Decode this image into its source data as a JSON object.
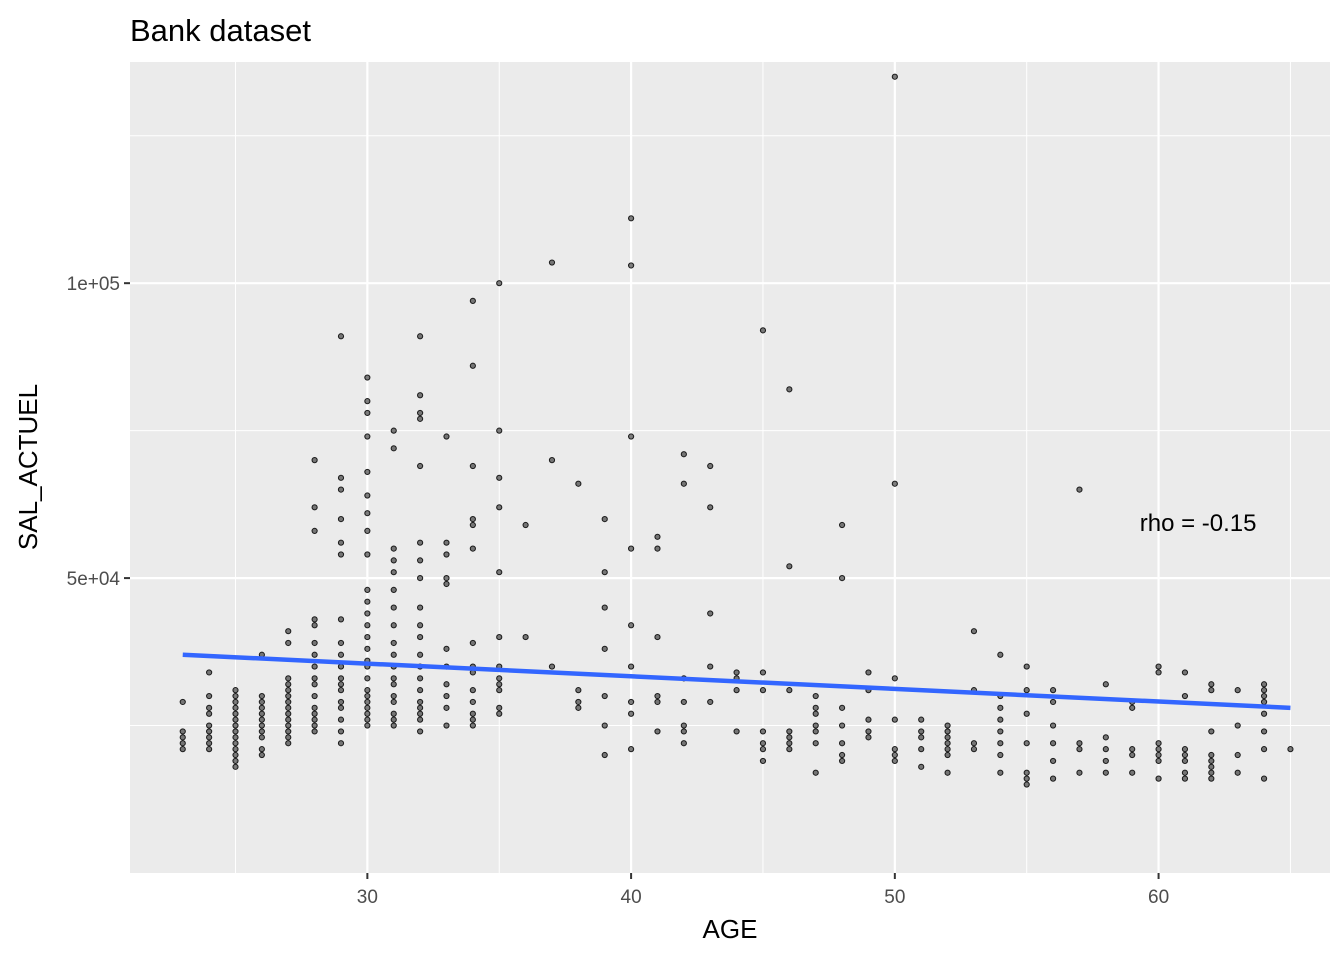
{
  "chart_data": {
    "type": "scatter",
    "title": "Bank dataset",
    "xlabel": "AGE",
    "ylabel": "SAL_ACTUEL",
    "xlim": [
      21,
      66.5
    ],
    "ylim": [
      0,
      137500
    ],
    "x_ticks": [
      30,
      40,
      50,
      60
    ],
    "x_tick_labels": [
      "30",
      "40",
      "50",
      "60"
    ],
    "y_ticks": [
      50000,
      100000
    ],
    "y_tick_labels": [
      "5e+04",
      "1e+05"
    ],
    "grid": true,
    "background_color": "#ebebeb",
    "grid_color": "#ffffff",
    "point_color": "#000000",
    "point_alpha": 0.5,
    "trend_color": "#3366ff",
    "annotation": {
      "text": "rho = -0.15",
      "x": 61.5,
      "y": 58000
    },
    "trend_line": {
      "x": [
        23,
        65
      ],
      "y": [
        37000,
        28000
      ]
    },
    "points": [
      [
        23,
        21000
      ],
      [
        23,
        22000
      ],
      [
        23,
        23000
      ],
      [
        23,
        24000
      ],
      [
        23,
        29000
      ],
      [
        24,
        21000
      ],
      [
        24,
        22000
      ],
      [
        24,
        23000
      ],
      [
        24,
        24000
      ],
      [
        24,
        25000
      ],
      [
        24,
        27000
      ],
      [
        24,
        28000
      ],
      [
        24,
        30000
      ],
      [
        24,
        34000
      ],
      [
        25,
        18000
      ],
      [
        25,
        19000
      ],
      [
        25,
        20000
      ],
      [
        25,
        21000
      ],
      [
        25,
        22000
      ],
      [
        25,
        23000
      ],
      [
        25,
        24000
      ],
      [
        25,
        25000
      ],
      [
        25,
        26000
      ],
      [
        25,
        27000
      ],
      [
        25,
        28000
      ],
      [
        25,
        29000
      ],
      [
        25,
        30000
      ],
      [
        25,
        31000
      ],
      [
        26,
        20000
      ],
      [
        26,
        21000
      ],
      [
        26,
        23000
      ],
      [
        26,
        24000
      ],
      [
        26,
        25000
      ],
      [
        26,
        26000
      ],
      [
        26,
        27000
      ],
      [
        26,
        28000
      ],
      [
        26,
        29000
      ],
      [
        26,
        30000
      ],
      [
        26,
        37000
      ],
      [
        27,
        22000
      ],
      [
        27,
        23000
      ],
      [
        27,
        24000
      ],
      [
        27,
        25000
      ],
      [
        27,
        26000
      ],
      [
        27,
        27000
      ],
      [
        27,
        28000
      ],
      [
        27,
        29000
      ],
      [
        27,
        30000
      ],
      [
        27,
        31000
      ],
      [
        27,
        32000
      ],
      [
        27,
        33000
      ],
      [
        27,
        39000
      ],
      [
        27,
        41000
      ],
      [
        28,
        24000
      ],
      [
        28,
        25000
      ],
      [
        28,
        26000
      ],
      [
        28,
        27000
      ],
      [
        28,
        28000
      ],
      [
        28,
        30000
      ],
      [
        28,
        32000
      ],
      [
        28,
        33000
      ],
      [
        28,
        35000
      ],
      [
        28,
        37000
      ],
      [
        28,
        39000
      ],
      [
        28,
        42000
      ],
      [
        28,
        43000
      ],
      [
        28,
        58000
      ],
      [
        28,
        62000
      ],
      [
        28,
        70000
      ],
      [
        29,
        22000
      ],
      [
        29,
        24000
      ],
      [
        29,
        26000
      ],
      [
        29,
        28000
      ],
      [
        29,
        29000
      ],
      [
        29,
        31000
      ],
      [
        29,
        32000
      ],
      [
        29,
        33000
      ],
      [
        29,
        35000
      ],
      [
        29,
        37000
      ],
      [
        29,
        39000
      ],
      [
        29,
        43000
      ],
      [
        29,
        54000
      ],
      [
        29,
        56000
      ],
      [
        29,
        60000
      ],
      [
        29,
        65000
      ],
      [
        29,
        67000
      ],
      [
        29,
        91000
      ],
      [
        30,
        25000
      ],
      [
        30,
        26000
      ],
      [
        30,
        27000
      ],
      [
        30,
        28000
      ],
      [
        30,
        29000
      ],
      [
        30,
        30000
      ],
      [
        30,
        31000
      ],
      [
        30,
        33000
      ],
      [
        30,
        35000
      ],
      [
        30,
        36000
      ],
      [
        30,
        38000
      ],
      [
        30,
        40000
      ],
      [
        30,
        42000
      ],
      [
        30,
        44000
      ],
      [
        30,
        46000
      ],
      [
        30,
        48000
      ],
      [
        30,
        54000
      ],
      [
        30,
        58000
      ],
      [
        30,
        61000
      ],
      [
        30,
        64000
      ],
      [
        30,
        68000
      ],
      [
        30,
        74000
      ],
      [
        30,
        78000
      ],
      [
        30,
        80000
      ],
      [
        30,
        84000
      ],
      [
        31,
        25000
      ],
      [
        31,
        26000
      ],
      [
        31,
        27000
      ],
      [
        31,
        29000
      ],
      [
        31,
        30000
      ],
      [
        31,
        32000
      ],
      [
        31,
        33000
      ],
      [
        31,
        35000
      ],
      [
        31,
        37000
      ],
      [
        31,
        39000
      ],
      [
        31,
        42000
      ],
      [
        31,
        45000
      ],
      [
        31,
        48000
      ],
      [
        31,
        51000
      ],
      [
        31,
        53000
      ],
      [
        31,
        55000
      ],
      [
        31,
        72000
      ],
      [
        31,
        75000
      ],
      [
        32,
        24000
      ],
      [
        32,
        26000
      ],
      [
        32,
        27000
      ],
      [
        32,
        28000
      ],
      [
        32,
        29000
      ],
      [
        32,
        31000
      ],
      [
        32,
        33000
      ],
      [
        32,
        35000
      ],
      [
        32,
        37000
      ],
      [
        32,
        40000
      ],
      [
        32,
        42000
      ],
      [
        32,
        45000
      ],
      [
        32,
        50000
      ],
      [
        32,
        53000
      ],
      [
        32,
        56000
      ],
      [
        32,
        69000
      ],
      [
        32,
        77000
      ],
      [
        32,
        78000
      ],
      [
        32,
        81000
      ],
      [
        32,
        91000
      ],
      [
        33,
        25000
      ],
      [
        33,
        28000
      ],
      [
        33,
        30000
      ],
      [
        33,
        32000
      ],
      [
        33,
        35000
      ],
      [
        33,
        38000
      ],
      [
        33,
        49000
      ],
      [
        33,
        50000
      ],
      [
        33,
        54000
      ],
      [
        33,
        56000
      ],
      [
        33,
        74000
      ],
      [
        34,
        25000
      ],
      [
        34,
        26000
      ],
      [
        34,
        27000
      ],
      [
        34,
        29000
      ],
      [
        34,
        31000
      ],
      [
        34,
        34000
      ],
      [
        34,
        35000
      ],
      [
        34,
        39000
      ],
      [
        34,
        55000
      ],
      [
        34,
        59000
      ],
      [
        34,
        60000
      ],
      [
        34,
        69000
      ],
      [
        34,
        86000
      ],
      [
        34,
        97000
      ],
      [
        35,
        27000
      ],
      [
        35,
        28000
      ],
      [
        35,
        31000
      ],
      [
        35,
        32000
      ],
      [
        35,
        33000
      ],
      [
        35,
        35000
      ],
      [
        35,
        40000
      ],
      [
        35,
        51000
      ],
      [
        35,
        62000
      ],
      [
        35,
        67000
      ],
      [
        35,
        75000
      ],
      [
        35,
        100000
      ],
      [
        36,
        59000
      ],
      [
        36,
        40000
      ],
      [
        37,
        103500
      ],
      [
        37,
        70000
      ],
      [
        37,
        35000
      ],
      [
        38,
        28000
      ],
      [
        38,
        29000
      ],
      [
        38,
        31000
      ],
      [
        38,
        66000
      ],
      [
        39,
        20000
      ],
      [
        39,
        25000
      ],
      [
        39,
        30000
      ],
      [
        39,
        38000
      ],
      [
        39,
        45000
      ],
      [
        39,
        51000
      ],
      [
        39,
        60000
      ],
      [
        40,
        21000
      ],
      [
        40,
        27000
      ],
      [
        40,
        29000
      ],
      [
        40,
        35000
      ],
      [
        40,
        42000
      ],
      [
        40,
        55000
      ],
      [
        40,
        74000
      ],
      [
        40,
        103000
      ],
      [
        40,
        111000
      ],
      [
        41,
        24000
      ],
      [
        41,
        29000
      ],
      [
        41,
        30000
      ],
      [
        41,
        40000
      ],
      [
        41,
        55000
      ],
      [
        41,
        57000
      ],
      [
        42,
        22000
      ],
      [
        42,
        24000
      ],
      [
        42,
        25000
      ],
      [
        42,
        29000
      ],
      [
        42,
        33000
      ],
      [
        42,
        66000
      ],
      [
        42,
        71000
      ],
      [
        43,
        29000
      ],
      [
        43,
        35000
      ],
      [
        43,
        44000
      ],
      [
        43,
        62000
      ],
      [
        43,
        69000
      ],
      [
        44,
        24000
      ],
      [
        44,
        31000
      ],
      [
        44,
        33000
      ],
      [
        44,
        34000
      ],
      [
        45,
        19000
      ],
      [
        45,
        21000
      ],
      [
        45,
        22000
      ],
      [
        45,
        24000
      ],
      [
        45,
        31000
      ],
      [
        45,
        34000
      ],
      [
        45,
        92000
      ],
      [
        46,
        21000
      ],
      [
        46,
        22000
      ],
      [
        46,
        23000
      ],
      [
        46,
        24000
      ],
      [
        46,
        31000
      ],
      [
        46,
        52000
      ],
      [
        46,
        82000
      ],
      [
        47,
        17000
      ],
      [
        47,
        22000
      ],
      [
        47,
        24000
      ],
      [
        47,
        25000
      ],
      [
        47,
        27000
      ],
      [
        47,
        28000
      ],
      [
        47,
        30000
      ],
      [
        48,
        19000
      ],
      [
        48,
        20000
      ],
      [
        48,
        22000
      ],
      [
        48,
        25000
      ],
      [
        48,
        28000
      ],
      [
        48,
        50000
      ],
      [
        48,
        59000
      ],
      [
        49,
        23000
      ],
      [
        49,
        24000
      ],
      [
        49,
        26000
      ],
      [
        49,
        31000
      ],
      [
        49,
        34000
      ],
      [
        50,
        19000
      ],
      [
        50,
        20000
      ],
      [
        50,
        21000
      ],
      [
        50,
        26000
      ],
      [
        50,
        33000
      ],
      [
        50,
        66000
      ],
      [
        50,
        135000
      ],
      [
        51,
        18000
      ],
      [
        51,
        21000
      ],
      [
        51,
        23000
      ],
      [
        51,
        24000
      ],
      [
        51,
        26000
      ],
      [
        52,
        17000
      ],
      [
        52,
        20000
      ],
      [
        52,
        21000
      ],
      [
        52,
        22000
      ],
      [
        52,
        23000
      ],
      [
        52,
        24000
      ],
      [
        52,
        25000
      ],
      [
        53,
        21000
      ],
      [
        53,
        22000
      ],
      [
        53,
        31000
      ],
      [
        53,
        41000
      ],
      [
        54,
        17000
      ],
      [
        54,
        20000
      ],
      [
        54,
        22000
      ],
      [
        54,
        24000
      ],
      [
        54,
        26000
      ],
      [
        54,
        28000
      ],
      [
        54,
        30000
      ],
      [
        54,
        37000
      ],
      [
        55,
        15000
      ],
      [
        55,
        16000
      ],
      [
        55,
        17000
      ],
      [
        55,
        22000
      ],
      [
        55,
        27000
      ],
      [
        55,
        31000
      ],
      [
        55,
        35000
      ],
      [
        56,
        16000
      ],
      [
        56,
        19000
      ],
      [
        56,
        22000
      ],
      [
        56,
        25000
      ],
      [
        56,
        29000
      ],
      [
        56,
        31000
      ],
      [
        57,
        17000
      ],
      [
        57,
        21000
      ],
      [
        57,
        22000
      ],
      [
        57,
        65000
      ],
      [
        58,
        17000
      ],
      [
        58,
        19000
      ],
      [
        58,
        21000
      ],
      [
        58,
        23000
      ],
      [
        58,
        32000
      ],
      [
        59,
        17000
      ],
      [
        59,
        20000
      ],
      [
        59,
        21000
      ],
      [
        59,
        28000
      ],
      [
        59,
        29000
      ],
      [
        60,
        16000
      ],
      [
        60,
        19000
      ],
      [
        60,
        20000
      ],
      [
        60,
        21000
      ],
      [
        60,
        22000
      ],
      [
        60,
        34000
      ],
      [
        60,
        35000
      ],
      [
        61,
        16000
      ],
      [
        61,
        17000
      ],
      [
        61,
        19000
      ],
      [
        61,
        20000
      ],
      [
        61,
        21000
      ],
      [
        61,
        30000
      ],
      [
        61,
        34000
      ],
      [
        62,
        16000
      ],
      [
        62,
        17000
      ],
      [
        62,
        18000
      ],
      [
        62,
        19000
      ],
      [
        62,
        20000
      ],
      [
        62,
        24000
      ],
      [
        62,
        31000
      ],
      [
        62,
        32000
      ],
      [
        63,
        17000
      ],
      [
        63,
        20000
      ],
      [
        63,
        25000
      ],
      [
        63,
        31000
      ],
      [
        64,
        16000
      ],
      [
        64,
        21000
      ],
      [
        64,
        24000
      ],
      [
        64,
        27000
      ],
      [
        64,
        29000
      ],
      [
        64,
        30000
      ],
      [
        64,
        31000
      ],
      [
        64,
        32000
      ],
      [
        65,
        21000
      ]
    ]
  }
}
